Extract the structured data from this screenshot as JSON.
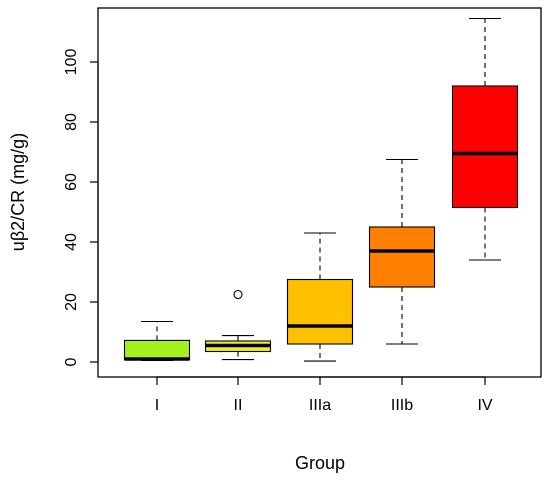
{
  "chart_data": {
    "type": "boxplot",
    "xlabel": "Group",
    "ylabel": "uβ2/CR (mg/g)",
    "ylim": [
      -5,
      118
    ],
    "yticks": [
      0,
      20,
      40,
      60,
      80,
      100
    ],
    "grid": false,
    "categories": [
      "I",
      "II",
      "IIIa",
      "IIIb",
      "IV"
    ],
    "boxes": [
      {
        "name": "I",
        "whisker_low": 0.5,
        "q1": 0.8,
        "median": 1.0,
        "q3": 7.2,
        "whisker_high": 13.5,
        "outliers": [],
        "color": "#a6f01c"
      },
      {
        "name": "II",
        "whisker_low": 0.8,
        "q1": 3.5,
        "median": 5.5,
        "q3": 7.0,
        "whisker_high": 8.8,
        "outliers": [
          22.5
        ],
        "color": "#f2ef1f"
      },
      {
        "name": "IIIa",
        "whisker_low": 0.3,
        "q1": 6.0,
        "median": 12.0,
        "q3": 27.5,
        "whisker_high": 43.0,
        "outliers": [],
        "color": "#ffc000"
      },
      {
        "name": "IIIb",
        "whisker_low": 6.0,
        "q1": 25.0,
        "median": 37.0,
        "q3": 45.0,
        "whisker_high": 67.5,
        "outliers": [],
        "color": "#ff8000"
      },
      {
        "name": "IV",
        "whisker_low": 34.0,
        "q1": 51.5,
        "median": 69.5,
        "q3": 92.0,
        "whisker_high": 114.5,
        "outliers": [],
        "color": "#ff0000"
      }
    ]
  }
}
